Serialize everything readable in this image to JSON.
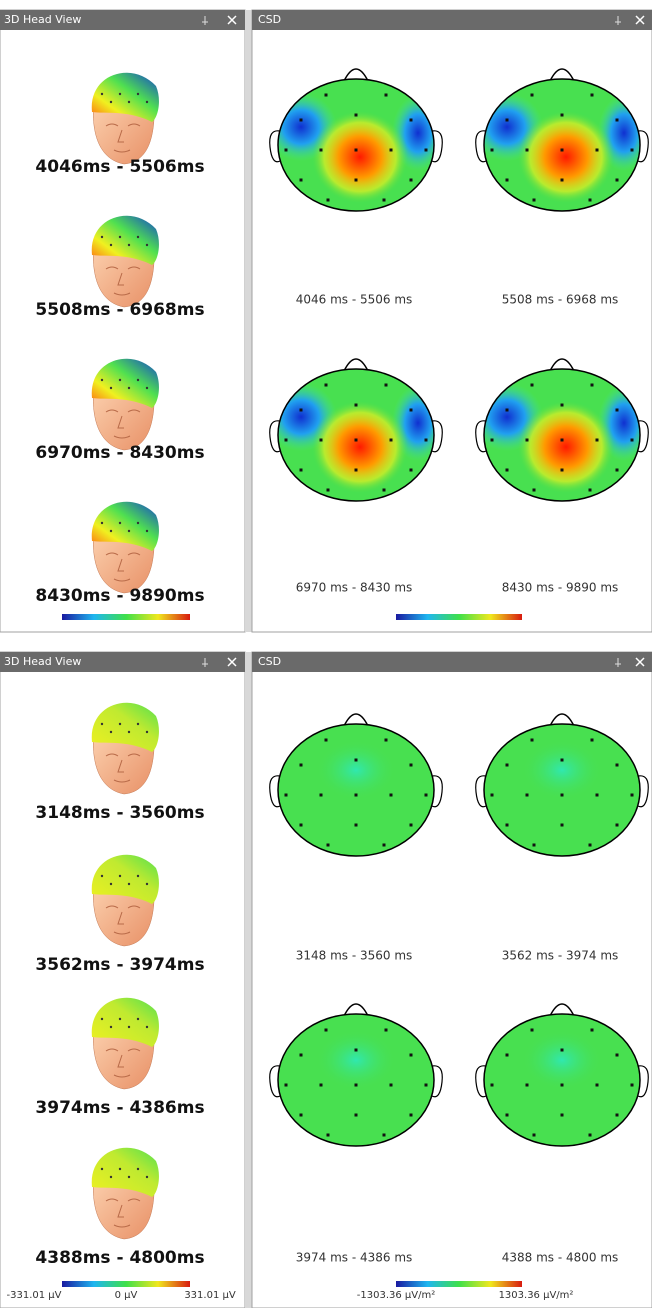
{
  "panels": [
    {
      "head_view": {
        "title": "3D Head View",
        "labels": [
          "4046ms - 5506ms",
          "5508ms - 6968ms",
          "6970ms - 8430ms",
          "8430ms - 9890ms"
        ]
      },
      "csd": {
        "title": "CSD",
        "labels": [
          "4046 ms - 5506 ms",
          "5508 ms - 6968 ms",
          "6970 ms - 8430 ms",
          "8430 ms - 9890 ms"
        ]
      }
    },
    {
      "head_view": {
        "title": "3D Head View",
        "labels": [
          "3148ms - 3560ms",
          "3562ms - 3974ms",
          "3974ms - 4386ms",
          "4388ms - 4800ms"
        ],
        "colorbar_labels": [
          "-331.01 µV",
          "0 µV",
          "331.01 µV"
        ]
      },
      "csd": {
        "title": "CSD",
        "labels": [
          "3148 ms - 3560 ms",
          "3562 ms - 3974 ms",
          "3974 ms - 4386 ms",
          "4388 ms - 4800 ms"
        ],
        "colorbar_labels": [
          "-1303.36 µV/m²",
          "1303.36 µV/m²"
        ]
      }
    }
  ]
}
